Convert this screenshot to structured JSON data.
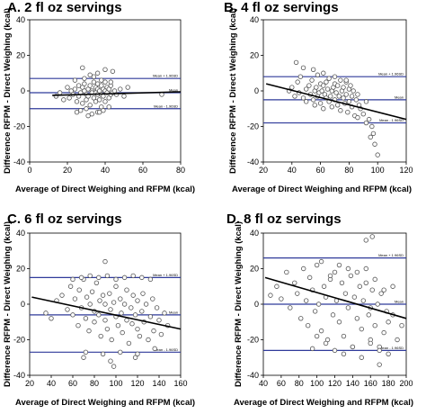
{
  "colors": {
    "ref_line": "#2f3a9a",
    "regression_line": "#000000",
    "point_fill": "#ffffff",
    "point_stroke": "#555555"
  },
  "chart_data": [
    {
      "type": "scatter",
      "title": "A. 2 fl oz servings",
      "xlabel": "Average of Direct Weighing and RFPM (kcal)",
      "ylabel": "Difference RFPM - Direct Weighing (kcal)",
      "xlim": [
        0,
        80
      ],
      "ylim": [
        -40,
        40
      ],
      "xticks": [
        0,
        20,
        40,
        60,
        80
      ],
      "yticks": [
        -40,
        -20,
        0,
        20,
        40
      ],
      "reference_lines": [
        {
          "label": "Mean + 1.96SD",
          "y": 7
        },
        {
          "label": "Mean",
          "y": -1
        },
        {
          "label": "Mean - 1.96SD",
          "y": -10
        }
      ],
      "regression": {
        "x": [
          12,
          80
        ],
        "y": [
          -2.5,
          -0.5
        ]
      },
      "x": [
        14,
        16,
        18,
        20,
        21,
        22,
        23,
        24,
        25,
        26,
        26,
        27,
        28,
        28,
        29,
        29,
        30,
        30,
        31,
        31,
        32,
        32,
        33,
        33,
        34,
        34,
        35,
        35,
        35,
        36,
        36,
        36,
        37,
        37,
        38,
        38,
        38,
        39,
        39,
        40,
        40,
        40,
        41,
        41,
        42,
        42,
        43,
        43,
        44,
        45,
        46,
        48,
        50,
        52,
        25,
        27,
        30,
        33,
        36,
        39,
        42,
        24,
        29,
        34,
        38,
        43,
        31,
        37,
        70,
        28,
        32,
        36,
        40,
        44
      ],
      "y": [
        -3,
        -1,
        -5,
        2,
        -4,
        0,
        -2,
        1,
        -6,
        3,
        -3,
        -1,
        2,
        -7,
        0,
        4,
        -2,
        -5,
        1,
        -3,
        3,
        -8,
        0,
        -1,
        5,
        -4,
        2,
        -6,
        -1,
        1,
        -2,
        4,
        0,
        -5,
        3,
        -2,
        -9,
        1,
        -3,
        0,
        5,
        -6,
        -1,
        2,
        -4,
        1,
        -2,
        3,
        -1,
        0,
        -2,
        1,
        -3,
        2,
        -12,
        -11,
        -10,
        -13,
        -12,
        -11,
        -9,
        6,
        7,
        8,
        6,
        5,
        -14,
        -12,
        -2,
        13,
        9,
        10,
        12,
        11
      ]
    },
    {
      "type": "scatter",
      "title": "B. 4 fl oz servings",
      "xlabel": "Average of Direct Weighing and RFPM (kcal)",
      "ylabel": "Difference RFPM - Direct Weighing (kcal)",
      "xlim": [
        20,
        120
      ],
      "ylim": [
        -40,
        40
      ],
      "xticks": [
        20,
        40,
        60,
        80,
        100,
        120
      ],
      "yticks": [
        -40,
        -20,
        0,
        20,
        40
      ],
      "reference_lines": [
        {
          "label": "Mean + 1.96SD",
          "y": 8
        },
        {
          "label": "Mean",
          "y": -5
        },
        {
          "label": "Mean - 1.96SD",
          "y": -18
        }
      ],
      "regression": {
        "x": [
          22,
          120
        ],
        "y": [
          4,
          -16
        ]
      },
      "x": [
        38,
        40,
        42,
        44,
        45,
        46,
        48,
        50,
        50,
        52,
        53,
        54,
        55,
        56,
        56,
        57,
        58,
        58,
        59,
        60,
        60,
        61,
        62,
        62,
        63,
        64,
        64,
        65,
        66,
        66,
        67,
        68,
        68,
        69,
        70,
        70,
        71,
        72,
        72,
        73,
        74,
        74,
        75,
        76,
        76,
        77,
        78,
        78,
        79,
        80,
        80,
        81,
        82,
        82,
        83,
        84,
        85,
        86,
        87,
        88,
        90,
        92,
        94,
        96,
        97,
        98,
        100,
        43,
        48,
        55,
        62,
        70,
        78,
        86,
        92,
        95
      ],
      "y": [
        0,
        2,
        -3,
        5,
        -1,
        8,
        -4,
        1,
        -6,
        3,
        -2,
        6,
        -5,
        0,
        -8,
        2,
        -3,
        9,
        -1,
        4,
        -7,
        0,
        3,
        -10,
        -2,
        5,
        -4,
        1,
        -6,
        7,
        -3,
        0,
        -9,
        2,
        -5,
        4,
        -1,
        -8,
        3,
        -3,
        6,
        -11,
        0,
        -4,
        2,
        -7,
        5,
        -2,
        -12,
        1,
        -6,
        3,
        -9,
        -3,
        0,
        -14,
        -5,
        -2,
        -8,
        -10,
        -13,
        -6,
        -16,
        -20,
        -24,
        -30,
        -36,
        16,
        13,
        12,
        10,
        8,
        6,
        -15,
        -18,
        -26
      ]
    },
    {
      "type": "scatter",
      "title": "C. 6 fl oz servings",
      "xlabel": "Average of Direct Weighing and RFPM (kcal)",
      "ylabel": "Difference RFPM - Direct Weighing (kcal)",
      "xlim": [
        20,
        160
      ],
      "ylim": [
        -40,
        40
      ],
      "xticks": [
        20,
        40,
        60,
        80,
        100,
        120,
        140,
        160
      ],
      "yticks": [
        -40,
        -20,
        0,
        20,
        40
      ],
      "reference_lines": [
        {
          "label": "Mean + 1.96SD",
          "y": 15
        },
        {
          "label": "Mean",
          "y": -6
        },
        {
          "label": "Mean - 1.96SD",
          "y": -27
        }
      ],
      "regression": {
        "x": [
          22,
          160
        ],
        "y": [
          4,
          -14
        ]
      },
      "x": [
        35,
        40,
        45,
        50,
        55,
        58,
        60,
        62,
        65,
        66,
        68,
        70,
        72,
        73,
        75,
        76,
        78,
        80,
        80,
        82,
        84,
        85,
        86,
        88,
        90,
        90,
        92,
        94,
        95,
        96,
        98,
        100,
        100,
        102,
        104,
        105,
        106,
        108,
        110,
        110,
        112,
        114,
        115,
        116,
        118,
        120,
        120,
        122,
        124,
        125,
        126,
        128,
        130,
        132,
        134,
        135,
        138,
        140,
        142,
        145,
        148,
        60,
        68,
        76,
        84,
        92,
        100,
        108,
        116,
        124,
        132,
        72,
        88,
        104,
        120,
        70,
        90,
        95,
        98,
        118,
        136
      ],
      "y": [
        -5,
        -8,
        2,
        5,
        -3,
        10,
        -6,
        3,
        -12,
        8,
        -2,
        14,
        -8,
        4,
        -15,
        0,
        7,
        -10,
        -4,
        12,
        -6,
        2,
        -18,
        5,
        -9,
        0,
        -14,
        6,
        -3,
        -20,
        1,
        -7,
        10,
        -12,
        3,
        -5,
        -16,
        0,
        -9,
        8,
        -22,
        -2,
        -11,
        5,
        -6,
        -14,
        2,
        -18,
        -4,
        6,
        -10,
        0,
        -20,
        -7,
        3,
        -15,
        -2,
        -9,
        -17,
        -5,
        -12,
        14,
        15,
        16,
        15,
        16,
        14,
        15,
        16,
        15,
        14,
        -27,
        -28,
        -27,
        -28,
        -30,
        24,
        -32,
        -35,
        -30,
        -25
      ]
    },
    {
      "type": "scatter",
      "title": "D. 8 fl oz servings",
      "xlabel": "Average of Direct Weighing and RFPM (kcal)",
      "ylabel": "Difference RFPM - Direct Weighing (kcal)",
      "xlim": [
        40,
        200
      ],
      "ylim": [
        -40,
        40
      ],
      "xticks": [
        40,
        60,
        80,
        100,
        120,
        140,
        160,
        180,
        200
      ],
      "yticks": [
        -40,
        -20,
        0,
        20,
        40
      ],
      "reference_lines": [
        {
          "label": "Mean + 1.96SD",
          "y": 26
        },
        {
          "label": "Mean",
          "y": 0
        },
        {
          "label": "Mean - 1.96SD",
          "y": -26
        }
      ],
      "regression": {
        "x": [
          42,
          200
        ],
        "y": [
          15,
          -8
        ]
      },
      "x": [
        48,
        55,
        60,
        66,
        70,
        75,
        78,
        82,
        85,
        88,
        90,
        92,
        95,
        98,
        100,
        102,
        105,
        108,
        110,
        112,
        115,
        118,
        120,
        122,
        125,
        128,
        130,
        132,
        135,
        138,
        140,
        142,
        145,
        148,
        150,
        152,
        155,
        158,
        160,
        162,
        165,
        168,
        170,
        172,
        175,
        178,
        180,
        185,
        190,
        195,
        100,
        110,
        120,
        130,
        140,
        150,
        160,
        170,
        180,
        105,
        125,
        145,
        165,
        185,
        115,
        135,
        155,
        175,
        95,
        155,
        160,
        162,
        170
      ],
      "y": [
        5,
        10,
        3,
        18,
        -2,
        12,
        6,
        -8,
        20,
        2,
        -12,
        15,
        8,
        -4,
        22,
        0,
        -15,
        10,
        4,
        -20,
        14,
        -6,
        18,
        2,
        -10,
        12,
        -18,
        6,
        -2,
        16,
        -24,
        4,
        -8,
        10,
        -14,
        2,
        20,
        -6,
        -20,
        8,
        -12,
        0,
        -24,
        6,
        -16,
        -4,
        -10,
        -6,
        -20,
        -12,
        -18,
        -22,
        -26,
        -28,
        -24,
        -30,
        -22,
        -26,
        -28,
        24,
        22,
        18,
        14,
        10,
        16,
        20,
        12,
        8,
        -25,
        36,
        -2,
        38,
        -34
      ]
    }
  ]
}
